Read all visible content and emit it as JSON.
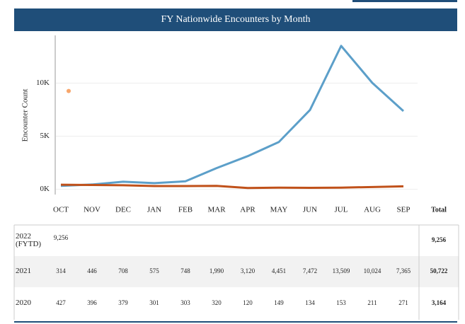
{
  "chart_data": {
    "type": "line",
    "title": "FY Nationwide Encounters by Month",
    "y_label": "Encounter Count",
    "categories": [
      "OCT",
      "NOV",
      "DEC",
      "JAN",
      "FEB",
      "MAR",
      "APR",
      "MAY",
      "JUN",
      "JUL",
      "AUG",
      "SEP"
    ],
    "total_header": "Total",
    "ylim": [
      -500,
      14500
    ],
    "yticks": [
      {
        "value": 0,
        "label": "0K"
      },
      {
        "value": 5000,
        "label": "5K"
      },
      {
        "value": 10000,
        "label": "10K"
      }
    ],
    "grid": true,
    "series": [
      {
        "name": "2022 (FYTD)",
        "color": "#f7a66b",
        "values": [
          9256,
          null,
          null,
          null,
          null,
          null,
          null,
          null,
          null,
          null,
          null,
          null
        ],
        "value_labels": [
          "9,256",
          null,
          null,
          null,
          null,
          null,
          null,
          null,
          null,
          null,
          null,
          null
        ],
        "total": 9256,
        "total_label": "9,256"
      },
      {
        "name": "2021",
        "color": "#5c9fc9",
        "values": [
          314,
          446,
          708,
          575,
          748,
          1990,
          3120,
          4451,
          7472,
          13509,
          10024,
          7365
        ],
        "value_labels": [
          "314",
          "446",
          "708",
          "575",
          "748",
          "1,990",
          "3,120",
          "4,451",
          "7,472",
          "13,509",
          "10,024",
          "7,365"
        ],
        "total": 50722,
        "total_label": "50,722"
      },
      {
        "name": "2020",
        "color": "#c0511a",
        "values": [
          427,
          396,
          379,
          301,
          303,
          320,
          120,
          149,
          134,
          153,
          211,
          271
        ],
        "value_labels": [
          "427",
          "396",
          "379",
          "301",
          "303",
          "320",
          "120",
          "149",
          "134",
          "153",
          "211",
          "271"
        ],
        "total": 3164,
        "total_label": "3,164"
      }
    ]
  }
}
